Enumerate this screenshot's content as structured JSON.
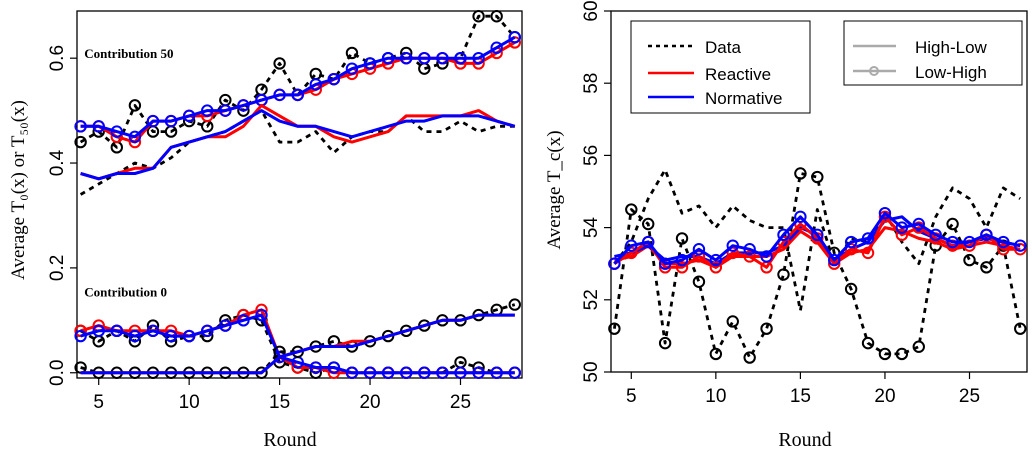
{
  "chart_data": [
    {
      "type": "line",
      "title": "",
      "xlabel": "Round",
      "ylabel": "Average T₀(x) or T₅₀(x)",
      "xlim": [
        3.8,
        28.4
      ],
      "ylim": [
        -0.01,
        0.69
      ],
      "xticks": [
        5,
        10,
        15,
        20,
        25
      ],
      "yticks": [
        0.0,
        0.2,
        0.4,
        0.6
      ],
      "ytick_labels": [
        "0.0",
        "0.2",
        "0.4",
        "0.6"
      ],
      "grid": false,
      "annotations": [
        {
          "text": "Contribution 50",
          "x": 4.2,
          "y": 0.6
        },
        {
          "text": "Contribution 0",
          "x": 4.2,
          "y": 0.145
        }
      ],
      "x": [
        4,
        5,
        6,
        7,
        8,
        9,
        10,
        11,
        12,
        13,
        14,
        15,
        16,
        17,
        18,
        19,
        20,
        21,
        22,
        23,
        24,
        25,
        26,
        27,
        28
      ],
      "series": [
        {
          "name": "Data",
          "group": "Low-High",
          "style": "dashed-marker",
          "color": "#000000",
          "values": [
            0.44,
            0.46,
            0.43,
            0.51,
            0.46,
            0.46,
            0.48,
            0.47,
            0.52,
            0.5,
            0.54,
            0.59,
            0.53,
            0.57,
            0.56,
            0.61,
            0.59,
            0.6,
            0.61,
            0.58,
            0.59,
            0.6,
            0.68,
            0.68,
            0.64
          ]
        },
        {
          "name": "Reactive",
          "group": "Low-High",
          "style": "solid-marker",
          "color": "#ff0000",
          "values": [
            0.47,
            0.47,
            0.45,
            0.44,
            0.48,
            0.48,
            0.49,
            0.49,
            0.5,
            0.51,
            0.52,
            0.53,
            0.53,
            0.54,
            0.56,
            0.57,
            0.58,
            0.59,
            0.6,
            0.6,
            0.6,
            0.59,
            0.59,
            0.61,
            0.63
          ]
        },
        {
          "name": "Normative",
          "group": "Low-High",
          "style": "solid-marker",
          "color": "#0000ff",
          "values": [
            0.47,
            0.47,
            0.46,
            0.45,
            0.48,
            0.48,
            0.49,
            0.5,
            0.5,
            0.51,
            0.52,
            0.53,
            0.53,
            0.55,
            0.56,
            0.58,
            0.59,
            0.6,
            0.6,
            0.6,
            0.6,
            0.6,
            0.6,
            0.62,
            0.64
          ]
        },
        {
          "name": "Data",
          "group": "High-Low",
          "style": "dashed",
          "color": "#000000",
          "values": [
            0.34,
            0.36,
            0.38,
            0.4,
            0.39,
            0.41,
            0.44,
            0.45,
            0.46,
            0.48,
            0.5,
            0.44,
            0.44,
            0.46,
            0.42,
            0.45,
            0.46,
            0.46,
            0.49,
            0.46,
            0.46,
            0.48,
            0.46,
            0.47,
            0.47
          ]
        },
        {
          "name": "Reactive",
          "group": "High-Low",
          "style": "solid",
          "color": "#ff0000",
          "values": [
            0.38,
            0.37,
            0.38,
            0.39,
            0.39,
            0.43,
            0.44,
            0.45,
            0.45,
            0.47,
            0.51,
            0.49,
            0.47,
            0.47,
            0.45,
            0.44,
            0.45,
            0.46,
            0.49,
            0.49,
            0.49,
            0.49,
            0.5,
            0.48,
            0.47
          ]
        },
        {
          "name": "Normative",
          "group": "High-Low",
          "style": "solid",
          "color": "#0000ff",
          "values": [
            0.38,
            0.37,
            0.38,
            0.38,
            0.39,
            0.43,
            0.44,
            0.45,
            0.46,
            0.48,
            0.5,
            0.48,
            0.47,
            0.47,
            0.46,
            0.45,
            0.46,
            0.47,
            0.48,
            0.48,
            0.49,
            0.49,
            0.49,
            0.48,
            0.47
          ]
        },
        {
          "name": "Data",
          "group": "Low-High",
          "style": "dashed-marker",
          "color": "#000000",
          "values": [
            0.08,
            0.06,
            0.08,
            0.06,
            0.09,
            0.06,
            0.07,
            0.07,
            0.1,
            0.11,
            0.1,
            0.02,
            0.01,
            0.0,
            0.01,
            0.0,
            0.0,
            0.0,
            0.0,
            0.0,
            0.0,
            0.02,
            0.01,
            0.0,
            0.0
          ]
        },
        {
          "name": "Reactive",
          "group": "Low-High",
          "style": "solid-marker",
          "color": "#ff0000",
          "values": [
            0.08,
            0.09,
            0.08,
            0.08,
            0.08,
            0.08,
            0.07,
            0.08,
            0.09,
            0.11,
            0.12,
            0.03,
            0.01,
            0.01,
            0.0,
            0.0,
            0.0,
            0.0,
            0.0,
            0.0,
            0.0,
            0.0,
            0.0,
            0.0,
            0.0
          ]
        },
        {
          "name": "Normative",
          "group": "Low-High",
          "style": "solid-marker",
          "color": "#0000ff",
          "values": [
            0.07,
            0.08,
            0.08,
            0.07,
            0.08,
            0.07,
            0.07,
            0.08,
            0.09,
            0.1,
            0.11,
            0.03,
            0.02,
            0.01,
            0.01,
            0.0,
            0.0,
            0.0,
            0.0,
            0.0,
            0.0,
            0.0,
            0.0,
            0.0,
            0.0
          ]
        },
        {
          "name": "Data",
          "group": "High-Low",
          "style": "dashed-marker",
          "color": "#000000",
          "values": [
            0.01,
            0.0,
            0.0,
            0.0,
            0.0,
            0.0,
            0.0,
            0.0,
            0.0,
            0.0,
            0.0,
            0.04,
            0.04,
            0.05,
            0.06,
            0.05,
            0.06,
            0.07,
            0.08,
            0.09,
            0.1,
            0.1,
            0.11,
            0.12,
            0.13
          ]
        },
        {
          "name": "Reactive",
          "group": "High-Low",
          "style": "solid",
          "color": "#ff0000",
          "values": [
            0.0,
            0.0,
            0.0,
            0.0,
            0.0,
            0.0,
            0.0,
            0.0,
            0.0,
            0.0,
            0.0,
            0.03,
            0.04,
            0.05,
            0.05,
            0.06,
            0.06,
            0.07,
            0.08,
            0.09,
            0.1,
            0.1,
            0.11,
            0.11,
            0.11
          ]
        },
        {
          "name": "Normative",
          "group": "High-Low",
          "style": "solid",
          "color": "#0000ff",
          "values": [
            0.0,
            0.0,
            0.0,
            0.0,
            0.0,
            0.0,
            0.0,
            0.0,
            0.0,
            0.0,
            0.0,
            0.03,
            0.04,
            0.05,
            0.05,
            0.05,
            0.06,
            0.07,
            0.08,
            0.09,
            0.1,
            0.1,
            0.11,
            0.11,
            0.11
          ]
        }
      ]
    },
    {
      "type": "line",
      "title": "",
      "xlabel": "Round",
      "ylabel": "Average T_c(x)",
      "xlim": [
        3.8,
        28.4
      ],
      "ylim": [
        50,
        60
      ],
      "xticks": [
        5,
        10,
        15,
        20,
        25
      ],
      "yticks": [
        50,
        52,
        54,
        56,
        58,
        60
      ],
      "ytick_labels": [
        "50",
        "52",
        "54",
        "56",
        "58",
        "60"
      ],
      "grid": false,
      "legend": [
        {
          "position": "top-left",
          "entries": [
            {
              "label": "Data",
              "color": "#000000",
              "style": "dashed"
            },
            {
              "label": "Reactive",
              "color": "#ff0000",
              "style": "solid"
            },
            {
              "label": "Normative",
              "color": "#0000ff",
              "style": "solid"
            }
          ]
        },
        {
          "position": "top-right",
          "entries": [
            {
              "label": "High-Low",
              "color": "#aaaaaa",
              "style": "solid"
            },
            {
              "label": "Low-High",
              "color": "#aaaaaa",
              "style": "solid-marker"
            }
          ]
        }
      ],
      "x": [
        4,
        5,
        6,
        7,
        8,
        9,
        10,
        11,
        12,
        13,
        14,
        15,
        16,
        17,
        18,
        19,
        20,
        21,
        22,
        23,
        24,
        25,
        26,
        27,
        28
      ],
      "series": [
        {
          "name": "Data",
          "group": "High-Low",
          "style": "dashed",
          "color": "#000000",
          "values": [
            53.0,
            53.6,
            54.8,
            55.6,
            54.4,
            54.6,
            54.0,
            54.6,
            54.2,
            54.0,
            54.0,
            51.7,
            54.5,
            53.0,
            53.7,
            53.6,
            54.4,
            53.6,
            53.0,
            54.3,
            55.1,
            54.8,
            54.0,
            55.1,
            54.8
          ]
        },
        {
          "name": "Data",
          "group": "Low-High",
          "style": "dashed-marker",
          "color": "#000000",
          "values": [
            51.2,
            54.5,
            54.1,
            50.8,
            53.7,
            52.5,
            50.5,
            51.4,
            50.4,
            51.2,
            52.7,
            55.5,
            55.4,
            53.3,
            52.3,
            50.8,
            50.5,
            50.5,
            50.7,
            53.5,
            54.1,
            53.1,
            52.9,
            53.5,
            51.2
          ]
        },
        {
          "name": "Reactive",
          "group": "High-Low",
          "style": "solid",
          "color": "#ff0000",
          "values": [
            53.1,
            53.2,
            53.5,
            53.0,
            53.0,
            53.1,
            52.9,
            53.2,
            53.2,
            53.2,
            53.4,
            53.9,
            53.6,
            53.0,
            53.3,
            53.4,
            54.0,
            53.9,
            53.7,
            53.6,
            53.4,
            53.5,
            53.6,
            53.5,
            53.4
          ]
        },
        {
          "name": "Normative",
          "group": "High-Low",
          "style": "solid",
          "color": "#0000ff",
          "values": [
            53.2,
            53.3,
            53.5,
            53.1,
            53.2,
            53.2,
            53.0,
            53.3,
            53.3,
            53.3,
            53.5,
            54.0,
            53.8,
            53.1,
            53.4,
            53.6,
            54.2,
            54.3,
            53.9,
            53.7,
            53.5,
            53.6,
            53.7,
            53.6,
            53.5
          ]
        },
        {
          "name": "Reactive",
          "group": "Low-High",
          "style": "solid-marker",
          "color": "#ff0000",
          "values": [
            53.0,
            53.3,
            53.6,
            52.9,
            52.9,
            53.2,
            52.9,
            53.3,
            53.2,
            52.9,
            53.6,
            54.1,
            53.7,
            53.0,
            53.4,
            53.3,
            54.3,
            53.8,
            54.0,
            53.7,
            53.5,
            53.5,
            53.8,
            53.4,
            53.4
          ]
        },
        {
          "name": "Normative",
          "group": "Low-High",
          "style": "solid-marker",
          "color": "#0000ff",
          "values": [
            53.0,
            53.5,
            53.6,
            53.0,
            53.1,
            53.4,
            53.1,
            53.5,
            53.4,
            53.2,
            53.8,
            54.3,
            53.8,
            53.1,
            53.6,
            53.7,
            54.4,
            54.0,
            54.1,
            53.8,
            53.6,
            53.6,
            53.8,
            53.6,
            53.5
          ]
        }
      ]
    }
  ]
}
